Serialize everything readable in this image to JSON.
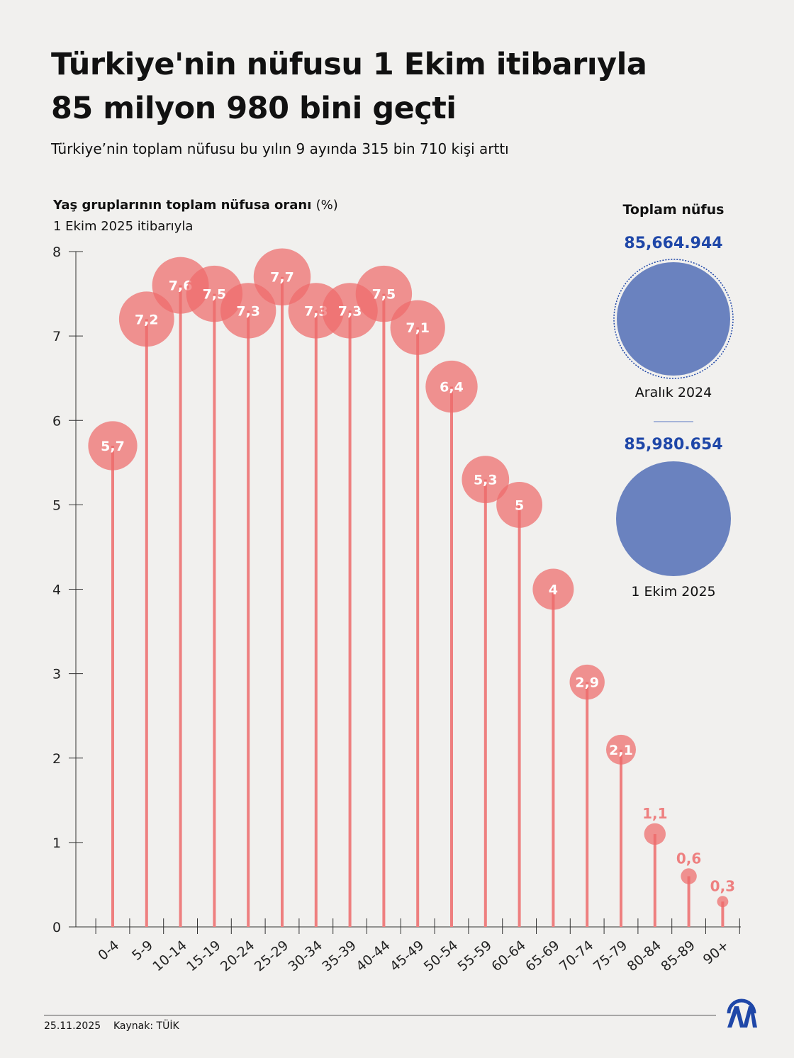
{
  "header": {
    "title": "Türkiye'nin nüfusu 1 Ekim itibarıyla 85 milyon 980 bini geçti",
    "subtitle": "Türkiye’nin toplam nüfusu bu yılın 9 ayında 315 bin 710 kişi arttı"
  },
  "chart_data": {
    "type": "lollipop",
    "title": "Yaş gruplarının toplam nüfusa oranı",
    "title_unit": "(%)",
    "subtitle": "1 Ekim 2025 itibarıyla",
    "categories": [
      "0-4",
      "5-9",
      "10-14",
      "15-19",
      "20-24",
      "25-29",
      "30-34",
      "35-39",
      "40-44",
      "45-49",
      "50-54",
      "55-59",
      "60-64",
      "65-69",
      "70-74",
      "75-79",
      "80-84",
      "85-89",
      "90+"
    ],
    "values": [
      5.7,
      7.2,
      7.6,
      7.5,
      7.3,
      7.7,
      7.3,
      7.3,
      7.5,
      7.1,
      6.4,
      5.3,
      5,
      4,
      2.9,
      2.1,
      1.1,
      0.6,
      0.3
    ],
    "labels": [
      "5,7",
      "7,2",
      "7,6",
      "7,5",
      "7,3",
      "7,7",
      "7,3",
      "7,3",
      "7,5",
      "7,1",
      "6,4",
      "5,3",
      "5",
      "4",
      "2,9",
      "2,1",
      "1,1",
      "0,6",
      "0,3"
    ],
    "ylim": [
      0,
      8
    ],
    "yticks": [
      0,
      1,
      2,
      3,
      4,
      5,
      6,
      7,
      8
    ],
    "color": "#ee6b6b"
  },
  "totals": {
    "title": "Toplam nüfus",
    "items": [
      {
        "value": "85,664.944",
        "period": "Aralık 2024"
      },
      {
        "value": "85,980.654",
        "period": "1 Ekim 2025"
      }
    ],
    "color": "#6a82bf",
    "value_color": "#1f47a8"
  },
  "footer": {
    "date": "25.11.2025",
    "source": "Kaynak: TÜİK",
    "logo": "AA"
  }
}
